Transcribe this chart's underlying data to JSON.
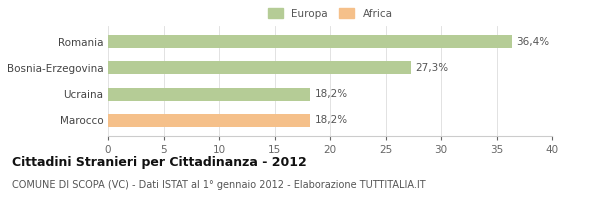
{
  "categories": [
    "Romania",
    "Bosnia-Erzegovina",
    "Ucraina",
    "Marocco"
  ],
  "values": [
    36.4,
    27.3,
    18.2,
    18.2
  ],
  "bar_colors": [
    "#b5cc96",
    "#b5cc96",
    "#b5cc96",
    "#f5c08a"
  ],
  "labels": [
    "36,4%",
    "27,3%",
    "18,2%",
    "18,2%"
  ],
  "legend": [
    {
      "label": "Europa",
      "color": "#b5cc96"
    },
    {
      "label": "Africa",
      "color": "#f5c08a"
    }
  ],
  "xlim": [
    0,
    40
  ],
  "xticks": [
    0,
    5,
    10,
    15,
    20,
    25,
    30,
    35,
    40
  ],
  "title": "Cittadini Stranieri per Cittadinanza - 2012",
  "subtitle": "COMUNE DI SCOPA (VC) - Dati ISTAT al 1° gennaio 2012 - Elaborazione TUTTITALIA.IT",
  "background_color": "#ffffff",
  "bar_height": 0.5,
  "label_fontsize": 7.5,
  "ytick_fontsize": 7.5,
  "xtick_fontsize": 7.5,
  "title_fontsize": 9,
  "subtitle_fontsize": 7
}
